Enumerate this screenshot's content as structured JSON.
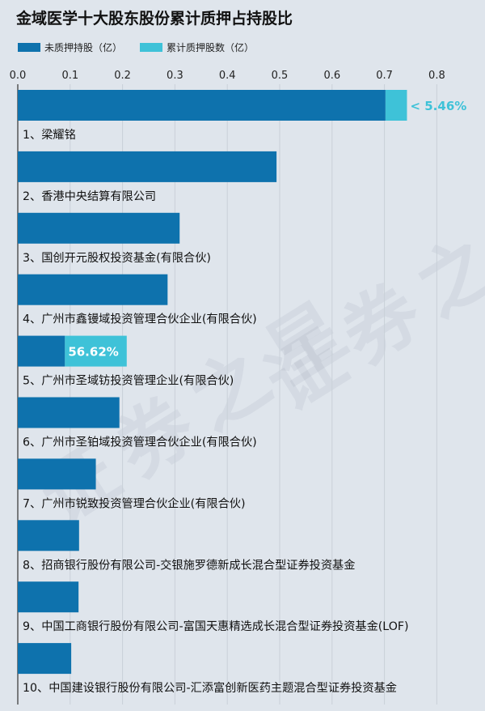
{
  "title": "金域医学十大股东股份累计质押占持股比",
  "legend": {
    "unpledged": "未质押持股（亿）",
    "pledged": "累计质押股数（亿）"
  },
  "watermark": "证券之星",
  "colors": {
    "unpledged": "#0e72ad",
    "pledged": "#3ec2d8",
    "background": "#dfe5ec",
    "grid": "#c9d0d8",
    "annotation": "#3ec2d8"
  },
  "chart_data": {
    "type": "bar",
    "orientation": "horizontal",
    "stacked": true,
    "title": "金域医学十大股东股份累计质押占持股比",
    "xlim": [
      0,
      0.85
    ],
    "xticks": [
      "0.0",
      "0.1",
      "0.2",
      "0.3",
      "0.4",
      "0.5",
      "0.6",
      "0.7",
      "0.8"
    ],
    "xtick_values": [
      0,
      0.1,
      0.2,
      0.3,
      0.4,
      0.5,
      0.6,
      0.7,
      0.8
    ],
    "grid": true,
    "legend_position": "top-left",
    "categories": [
      "1、梁耀铭",
      "2、香港中央结算有限公司",
      "3、国创开元股权投资基金(有限合伙)",
      "4、广州市鑫镘域投资管理合伙企业(有限合伙)",
      "5、广州市圣域钫投资管理企业(有限合伙)",
      "6、广州市圣铂域投资管理合伙企业(有限合伙)",
      "7、广州市锐致投资管理合伙企业(有限合伙)",
      "8、招商银行股份有限公司-交银施罗德新成长混合型证券投资基金",
      "9、中国工商银行股份有限公司-富国天惠精选成长混合型证券投资基金(LOF)",
      "10、中国建设银行股份有限公司-汇添富创新医药主题混合型证券投资基金"
    ],
    "series": [
      {
        "name": "未质押持股（亿）",
        "values": [
          0.702,
          0.494,
          0.309,
          0.286,
          0.09,
          0.194,
          0.149,
          0.117,
          0.116,
          0.102
        ]
      },
      {
        "name": "累计质押股数（亿）",
        "values": [
          0.041,
          0,
          0,
          0,
          0.118,
          0,
          0,
          0,
          0,
          0
        ]
      }
    ],
    "annotations": [
      {
        "index": 0,
        "text": "< 5.46%",
        "placement": "outside"
      },
      {
        "index": 4,
        "text": "56.62%",
        "placement": "inside"
      }
    ]
  }
}
